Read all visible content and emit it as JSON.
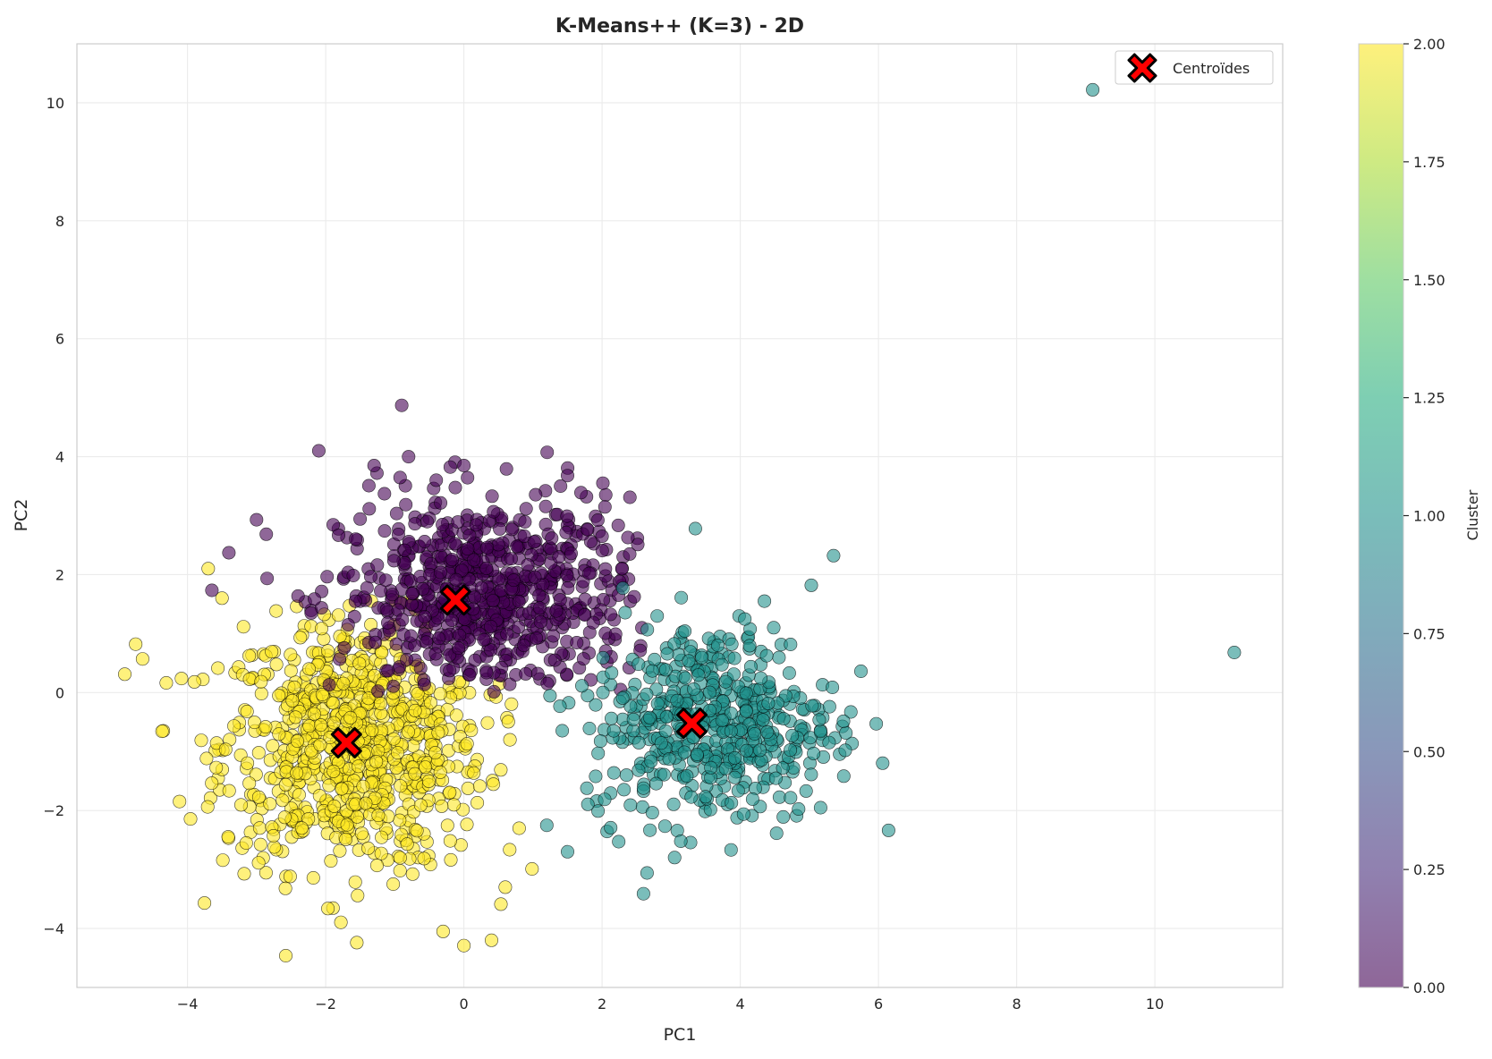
{
  "chart_data": {
    "type": "scatter",
    "title": "K-Means++ (K=3) - 2D",
    "xlabel": "PC1",
    "ylabel": "PC2",
    "xlim": [
      -5.6,
      11.85
    ],
    "ylim": [
      -5.0,
      11.0
    ],
    "xticks": [
      -4,
      -2,
      0,
      2,
      4,
      6,
      8,
      10
    ],
    "yticks": [
      -4,
      -2,
      0,
      2,
      4,
      6,
      8,
      10
    ],
    "xtick_labels": [
      "−4",
      "−2",
      "0",
      "2",
      "4",
      "6",
      "8",
      "10"
    ],
    "ytick_labels": [
      "−4",
      "−2",
      "0",
      "2",
      "4",
      "6",
      "8",
      "10"
    ],
    "grid": true,
    "legend": {
      "placement": "top-right",
      "entries": [
        "Centroïdes"
      ]
    },
    "colorbar": {
      "label": "Cluster",
      "range": [
        0.0,
        2.0
      ],
      "ticks": [
        "0.00",
        "0.25",
        "0.50",
        "0.75",
        "1.00",
        "1.25",
        "1.50",
        "1.75",
        "2.00"
      ],
      "colormap": "viridis"
    },
    "colors": {
      "cluster_0": "#440154",
      "cluster_1": "#21918c",
      "cluster_2": "#fde725",
      "centroid_fill": "#ff0000",
      "centroid_edge": "#000000",
      "grid": "#ebebeb"
    },
    "series": [
      {
        "cluster": 0,
        "approx_count": 700,
        "center": [
          0.3,
          1.6
        ],
        "spread": [
          1.05,
          0.85
        ],
        "sample_points": [
          [
            -0.9,
            4.87
          ],
          [
            -2.1,
            4.1
          ],
          [
            -0.8,
            4.0
          ],
          [
            -1.3,
            3.85
          ],
          [
            0.0,
            3.85
          ],
          [
            -0.4,
            3.6
          ],
          [
            1.5,
            3.68
          ],
          [
            -3.4,
            2.37
          ],
          [
            -3.0,
            2.93
          ],
          [
            2.4,
            2.35
          ],
          [
            1.4,
            3.5
          ],
          [
            2.0,
            2.65
          ]
        ]
      },
      {
        "cluster": 1,
        "approx_count": 500,
        "center": [
          3.6,
          -0.5
        ],
        "spread": [
          0.9,
          0.85
        ],
        "sample_points": [
          [
            9.1,
            10.22
          ],
          [
            11.15,
            0.68
          ],
          [
            5.35,
            2.32
          ],
          [
            3.35,
            2.78
          ],
          [
            5.52,
            -0.98
          ],
          [
            2.6,
            -3.41
          ],
          [
            4.35,
            1.55
          ],
          [
            1.2,
            -2.25
          ],
          [
            1.5,
            -2.7
          ],
          [
            2.3,
            1.77
          ]
        ]
      },
      {
        "cluster": 2,
        "approx_count": 800,
        "center": [
          -1.6,
          -0.9
        ],
        "spread": [
          0.95,
          1.05
        ],
        "sample_points": [
          [
            -4.75,
            0.82
          ],
          [
            -4.65,
            0.57
          ],
          [
            -3.9,
            0.18
          ],
          [
            -3.7,
            2.1
          ],
          [
            -3.15,
            -2.55
          ],
          [
            -1.55,
            -4.24
          ],
          [
            0.0,
            -4.29
          ],
          [
            0.4,
            -4.2
          ],
          [
            -0.3,
            -4.05
          ],
          [
            0.8,
            -2.3
          ],
          [
            -3.5,
            1.6
          ],
          [
            0.6,
            -3.3
          ]
        ]
      }
    ],
    "centroids": [
      {
        "label": "Centroïdes",
        "x": -0.12,
        "y": 1.57
      },
      {
        "label": "Centroïdes",
        "x": 3.3,
        "y": -0.52
      },
      {
        "label": "Centroïdes",
        "x": -1.7,
        "y": -0.85
      }
    ]
  }
}
